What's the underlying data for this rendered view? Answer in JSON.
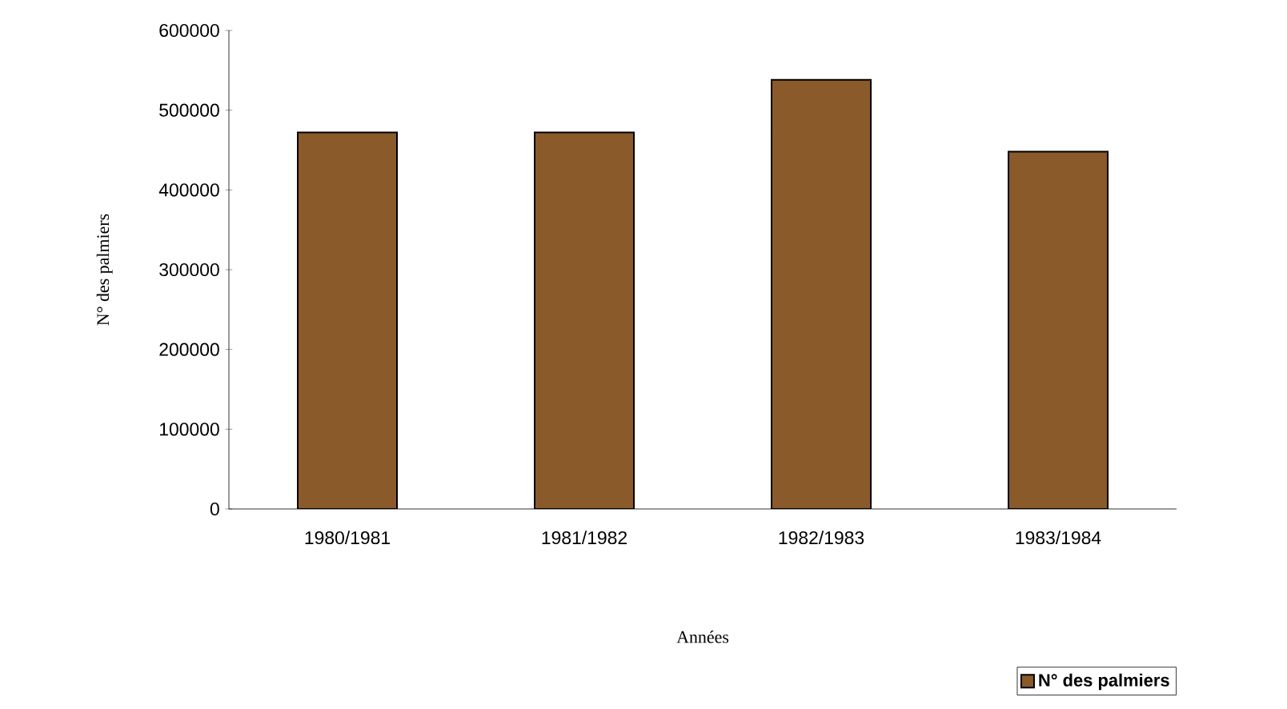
{
  "chart_data": {
    "type": "bar",
    "xlabel": "Années",
    "ylabel": "N° des palmiers",
    "categories": [
      "1980/1981",
      "1981/1982",
      "1982/1983",
      "1983/1984"
    ],
    "series": [
      {
        "name": "N° des palmiers",
        "color": "#8b5a2b",
        "values": [
          472000,
          472000,
          538000,
          448000
        ]
      }
    ],
    "ylim": [
      0,
      600000
    ],
    "yticks": [
      0,
      100000,
      200000,
      300000,
      400000,
      500000,
      600000
    ],
    "grid": false,
    "legend": "bottom right"
  }
}
